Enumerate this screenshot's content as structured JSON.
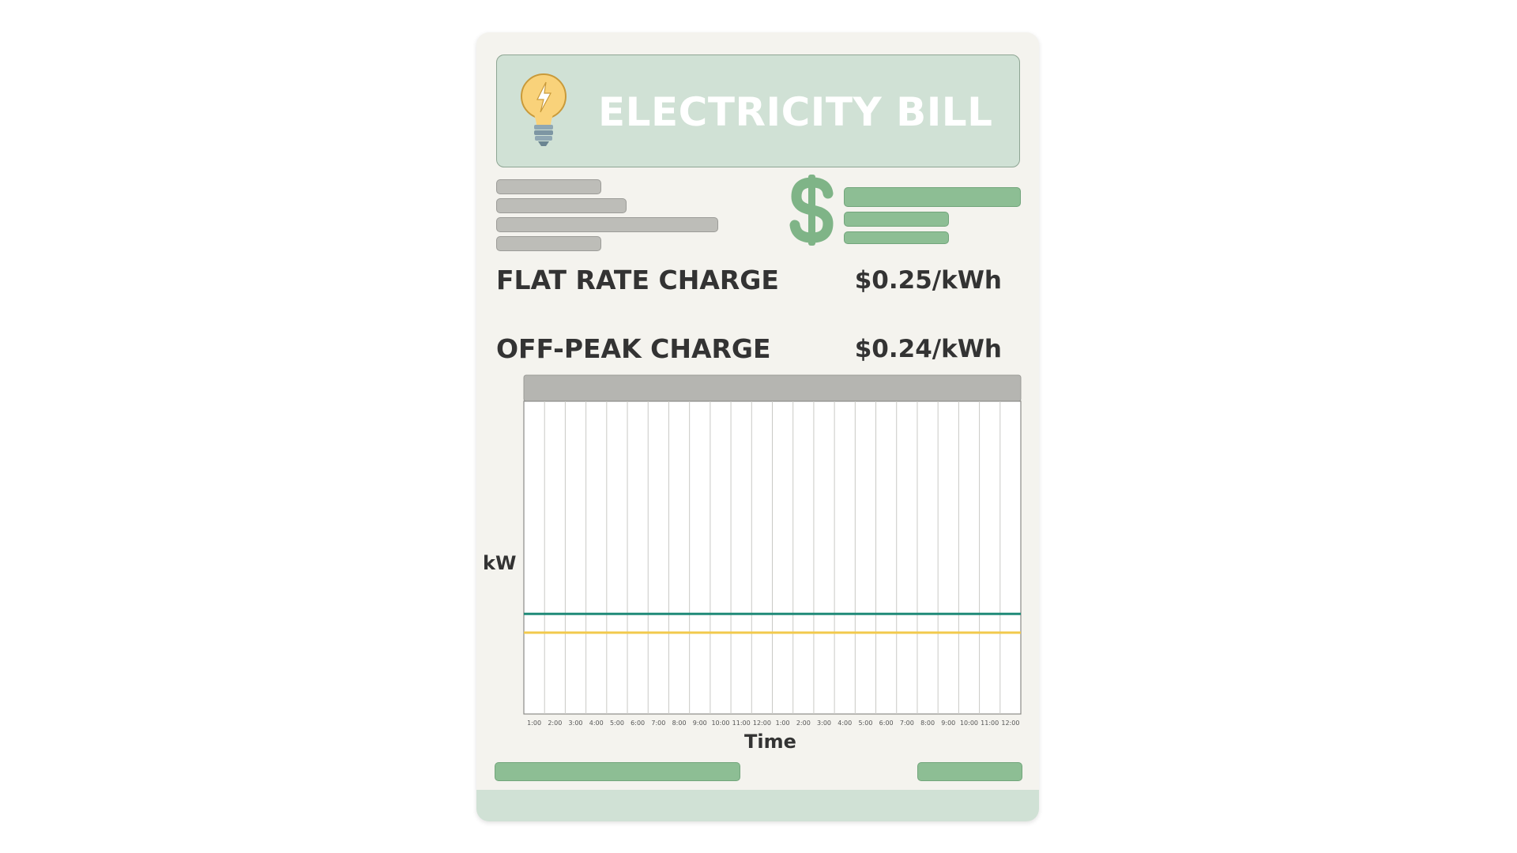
{
  "bill": {
    "title": "ELECTRICITY BILL",
    "icons": [
      "lightbulb-icon",
      "dollar-icon"
    ],
    "colors": {
      "header_bg": "#d0e1d5",
      "placeholder_green": "#8dbe94",
      "placeholder_gray": "#bdbdb8",
      "flat_rate_line": "#1f8a78",
      "off_peak_line": "#f2c94c"
    }
  },
  "charges": [
    {
      "label": "FLAT RATE CHARGE",
      "value": "$0.25/kWh"
    },
    {
      "label": "OFF-PEAK CHARGE",
      "value": "$0.24/kWh"
    }
  ],
  "chart_data": {
    "type": "line",
    "xlabel": "Time",
    "ylabel": "kW",
    "x": [
      "1:00",
      "2:00",
      "3:00",
      "4:00",
      "5:00",
      "6:00",
      "7:00",
      "8:00",
      "9:00",
      "10:00",
      "11:00",
      "12:00",
      "1:00",
      "2:00",
      "3:00",
      "4:00",
      "5:00",
      "6:00",
      "7:00",
      "8:00",
      "9:00",
      "10:00",
      "11:00",
      "12:00"
    ],
    "ylim": [
      0,
      1
    ],
    "series": [
      {
        "color": "#1f8a78",
        "values": [
          0.32,
          0.32,
          0.32,
          0.32,
          0.32,
          0.32,
          0.32,
          0.32,
          0.32,
          0.32,
          0.32,
          0.32,
          0.32,
          0.32,
          0.32,
          0.32,
          0.32,
          0.32,
          0.32,
          0.32,
          0.32,
          0.32,
          0.32,
          0.32
        ]
      },
      {
        "color": "#f2c94c",
        "values": [
          0.26,
          0.26,
          0.26,
          0.26,
          0.26,
          0.26,
          0.26,
          0.26,
          0.26,
          0.26,
          0.26,
          0.26,
          0.26,
          0.26,
          0.26,
          0.26,
          0.26,
          0.26,
          0.26,
          0.26,
          0.26,
          0.26,
          0.26,
          0.26
        ]
      }
    ],
    "grid": "vertical",
    "legend": "none"
  }
}
